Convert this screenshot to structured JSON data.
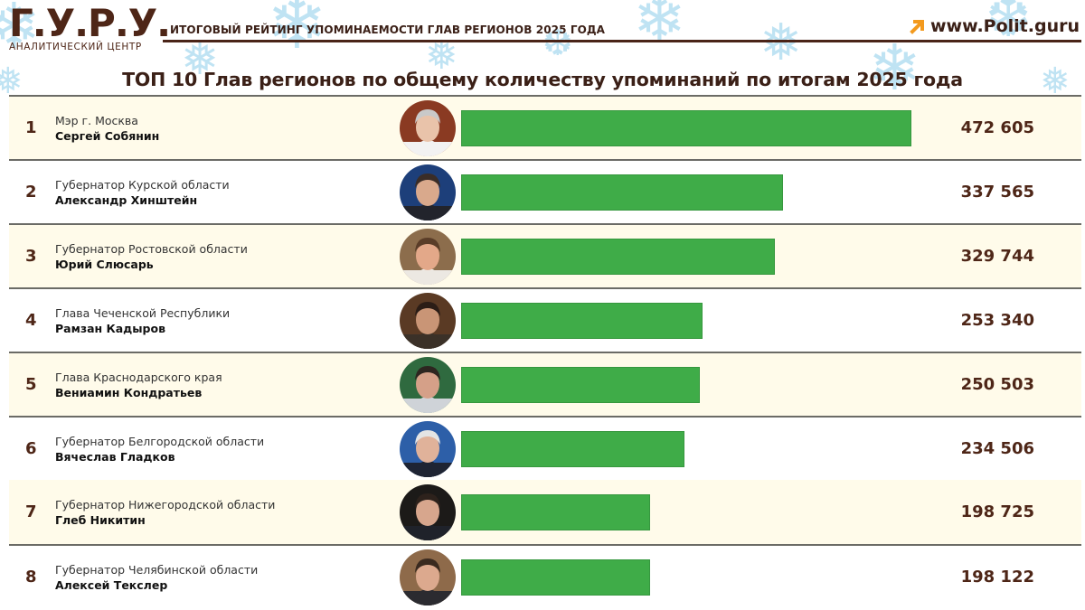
{
  "header": {
    "logo_main": "Г.У.Р.У.",
    "logo_sub": "АНАЛИТИЧЕСКИЙ ЦЕНТР",
    "report_title": "ИТОГОВЫЙ РЕЙТИНГ УПОМИНАЕМОСТИ ГЛАВ РЕГИОНОВ 2025 ГОДА",
    "site": "www.Polit.guru",
    "site_icon": "arrow-up-right-icon"
  },
  "main_title": "ТОП 10 Глав регионов по общему количеству упоминаний по итогам 2025 года",
  "colors": {
    "brand_brown": "#4e2617",
    "bar_green": "#3fac48",
    "row_cream": "#fffbea",
    "accent_orange": "#f39a1e",
    "snow_blue": "#bfe3f3"
  },
  "rows": [
    {
      "rank": "1",
      "role": "Мэр г. Москва",
      "name": "Сергей Собянин",
      "value_label": "472 605",
      "value": 472605,
      "bg": "cream",
      "avatar": {
        "bg": "#8a3a22",
        "face": "#e9c3aa",
        "hair": "#c9c9c9",
        "suit": "#f2f2f2"
      }
    },
    {
      "rank": "2",
      "role": "Губернатор Курской области",
      "name": "Александр Хинштейн",
      "value_label": "337 565",
      "value": 337565,
      "bg": "white",
      "avatar": {
        "bg": "#1d3f7a",
        "face": "#d9a98c",
        "hair": "#3a2d27",
        "suit": "#22242c"
      }
    },
    {
      "rank": "3",
      "role": "Губернатор Ростовской области",
      "name": "Юрий Слюсарь",
      "value_label": "329 744",
      "value": 329744,
      "bg": "cream",
      "avatar": {
        "bg": "#8c6d4c",
        "face": "#e3a889",
        "hair": "#5a3d28",
        "suit": "#ece8e2"
      }
    },
    {
      "rank": "4",
      "role": "Глава Чеченской Республики",
      "name": "Рамзан Кадыров",
      "value_label": "253 340",
      "value": 253340,
      "bg": "white",
      "avatar": {
        "bg": "#5a3a24",
        "face": "#c99576",
        "hair": "#2b1d16",
        "suit": "#3b3128"
      }
    },
    {
      "rank": "5",
      "role": "Глава Краснодарского края",
      "name": "Вениамин Кондратьев",
      "value_label": "250 503",
      "value": 250503,
      "bg": "cream",
      "avatar": {
        "bg": "#2f6a3f",
        "face": "#d5a088",
        "hair": "#2d2620",
        "suit": "#cfd3d8"
      }
    },
    {
      "rank": "6",
      "role": "Губернатор Белгородской области",
      "name": "Вячеслав Гладков",
      "value_label": "234 506",
      "value": 234506,
      "bg": "white",
      "avatar": {
        "bg": "#2d5fa8",
        "face": "#e0b29a",
        "hair": "#e4e4e4",
        "suit": "#1e2433"
      }
    },
    {
      "rank": "7",
      "role": "Губернатор Нижегородской области",
      "name": "Глеб Никитин",
      "value_label": "198 725",
      "value": 198725,
      "bg": "cream",
      "avatar": {
        "bg": "#1c1a18",
        "face": "#d7a68d",
        "hair": "#2d221c",
        "suit": "#1f222a"
      }
    },
    {
      "rank": "8",
      "role": "Губернатор Челябинской области",
      "name": "Алексей Текслер",
      "value_label": "198 122",
      "value": 198122,
      "bg": "white",
      "avatar": {
        "bg": "#8e6a4a",
        "face": "#dca98e",
        "hair": "#3a2a1f",
        "suit": "#2b2b30"
      }
    }
  ],
  "chart_data": {
    "type": "bar",
    "orientation": "horizontal",
    "title": "ТОП 10 Глав регионов по общему количеству упоминаний по итогам 2025 года",
    "subtitle": "ИТОГОВЫЙ РЕЙТИНГ УПОМИНАЕМОСТИ ГЛАВ РЕГИОНОВ 2025 ГОДА",
    "categories": [
      "Мэр г. Москва — Сергей Собянин",
      "Губернатор Курской области — Александр Хинштейн",
      "Губернатор Ростовской области — Юрий Слюсарь",
      "Глава Чеченской Республики — Рамзан Кадыров",
      "Глава Краснодарского края — Вениамин Кондратьев",
      "Губернатор Белгородской области — Вячеслав Гладков",
      "Губернатор Нижегородской области — Глеб Никитин",
      "Губернатор Челябинской области — Алексей Текслер"
    ],
    "values": [
      472605,
      337565,
      329744,
      253340,
      250503,
      234506,
      198725,
      198122
    ],
    "xlabel": "",
    "ylabel": "",
    "grid": false,
    "legend": null,
    "data_labels": true,
    "bar_color": "#3fac48"
  }
}
